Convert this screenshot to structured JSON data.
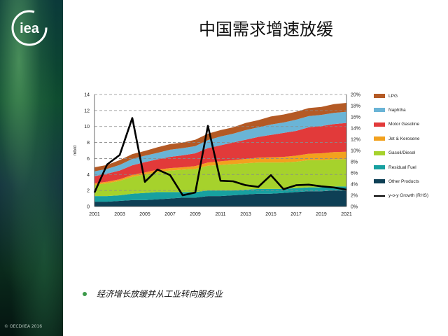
{
  "slide": {
    "title": "中国需求增速放缓",
    "bullet": "经济增长放缓并从工业转向服务业",
    "copyright": "© OECD/IEA 2016",
    "logo_text": "iea"
  },
  "colors": {
    "lpg": "#b45a25",
    "naphtha": "#6ab4d6",
    "motor_gasoline": "#e23a3a",
    "jet_kerosene": "#f2a11e",
    "gasoil_diesel": "#a6d22c",
    "residual_fuel": "#17a0a0",
    "other_products": "#0e3f55",
    "growth": "#000000",
    "bullet": "#3c9a4a"
  },
  "chart_data": {
    "type": "area",
    "title": "",
    "xlabel": "",
    "ylabel": "mb/d",
    "y2label": "",
    "x": [
      2001,
      2002,
      2003,
      2004,
      2005,
      2006,
      2007,
      2008,
      2009,
      2010,
      2011,
      2012,
      2013,
      2014,
      2015,
      2016,
      2017,
      2018,
      2019,
      2020,
      2021
    ],
    "x_tick_labels": [
      "2001",
      "2003",
      "2005",
      "2007",
      "2009",
      "2011",
      "2013",
      "2015",
      "2017",
      "2019",
      "2021"
    ],
    "ylim": [
      0,
      14
    ],
    "y_ticks": [
      "0",
      "2",
      "4",
      "6",
      "8",
      "10",
      "12",
      "14"
    ],
    "y2lim": [
      0,
      20
    ],
    "y2_ticks": [
      "0%",
      "2%",
      "4%",
      "6%",
      "8%",
      "10%",
      "12%",
      "14%",
      "16%",
      "18%",
      "20%"
    ],
    "stacked": true,
    "series": [
      {
        "name": "Other Products",
        "key": "other_products",
        "values": [
          0.6,
          0.6,
          0.7,
          0.8,
          0.8,
          0.9,
          1.0,
          1.1,
          1.1,
          1.3,
          1.3,
          1.4,
          1.5,
          1.6,
          1.6,
          1.7,
          1.8,
          1.9,
          1.9,
          2.0,
          2.0
        ]
      },
      {
        "name": "Residual Fuel",
        "key": "residual_fuel",
        "values": [
          0.7,
          0.7,
          0.7,
          0.8,
          0.9,
          0.9,
          0.8,
          0.7,
          0.7,
          0.7,
          0.7,
          0.6,
          0.6,
          0.6,
          0.6,
          0.5,
          0.5,
          0.5,
          0.5,
          0.5,
          0.5
        ]
      },
      {
        "name": "Gasoil/Diesel",
        "key": "gasoil_diesel",
        "values": [
          1.4,
          1.6,
          1.8,
          2.1,
          2.3,
          2.5,
          2.7,
          2.8,
          2.9,
          3.1,
          3.2,
          3.3,
          3.3,
          3.3,
          3.3,
          3.3,
          3.3,
          3.4,
          3.4,
          3.4,
          3.4
        ]
      },
      {
        "name": "Jet & Kerosene",
        "key": "jet_kerosene",
        "values": [
          0.2,
          0.2,
          0.2,
          0.25,
          0.25,
          0.3,
          0.3,
          0.3,
          0.35,
          0.4,
          0.45,
          0.5,
          0.55,
          0.6,
          0.65,
          0.7,
          0.75,
          0.8,
          0.85,
          0.9,
          0.95
        ]
      },
      {
        "name": "Motor Gasoline",
        "key": "motor_gasoline",
        "values": [
          0.9,
          1.0,
          1.1,
          1.2,
          1.3,
          1.3,
          1.4,
          1.5,
          1.6,
          1.8,
          2.0,
          2.2,
          2.4,
          2.6,
          2.8,
          3.0,
          3.1,
          3.3,
          3.4,
          3.5,
          3.6
        ]
      },
      {
        "name": "Naphtha",
        "key": "naphtha",
        "values": [
          0.6,
          0.6,
          0.7,
          0.8,
          0.8,
          0.8,
          0.9,
          0.9,
          0.9,
          1.0,
          1.1,
          1.1,
          1.2,
          1.2,
          1.3,
          1.3,
          1.4,
          1.4,
          1.4,
          1.4,
          1.4
        ]
      },
      {
        "name": "LPG",
        "key": "lpg",
        "values": [
          0.5,
          0.5,
          0.6,
          0.6,
          0.6,
          0.7,
          0.7,
          0.7,
          0.8,
          0.8,
          0.8,
          0.8,
          0.9,
          0.9,
          1.0,
          1.0,
          1.0,
          1.0,
          1.0,
          1.1,
          1.1
        ]
      }
    ],
    "line_series": {
      "name": "y-o-y Growth (RHS)",
      "key": "growth",
      "axis": "right",
      "values": [
        2.5,
        7.5,
        9.2,
        15.8,
        4.4,
        6.6,
        5.6,
        2.0,
        2.5,
        14.4,
        4.6,
        4.5,
        3.8,
        3.5,
        5.6,
        3.1,
        3.8,
        3.9,
        3.6,
        3.4,
        3.0
      ]
    },
    "legend_order": [
      "LPG",
      "Naphtha",
      "Motor Gasoline",
      "Jet & Kerosene",
      "Gasoil/Diesel",
      "Residual Fuel",
      "Other Products",
      "y-o-y Growth (RHS)"
    ],
    "legend_position": "right",
    "grid": "dashed horizontal"
  }
}
